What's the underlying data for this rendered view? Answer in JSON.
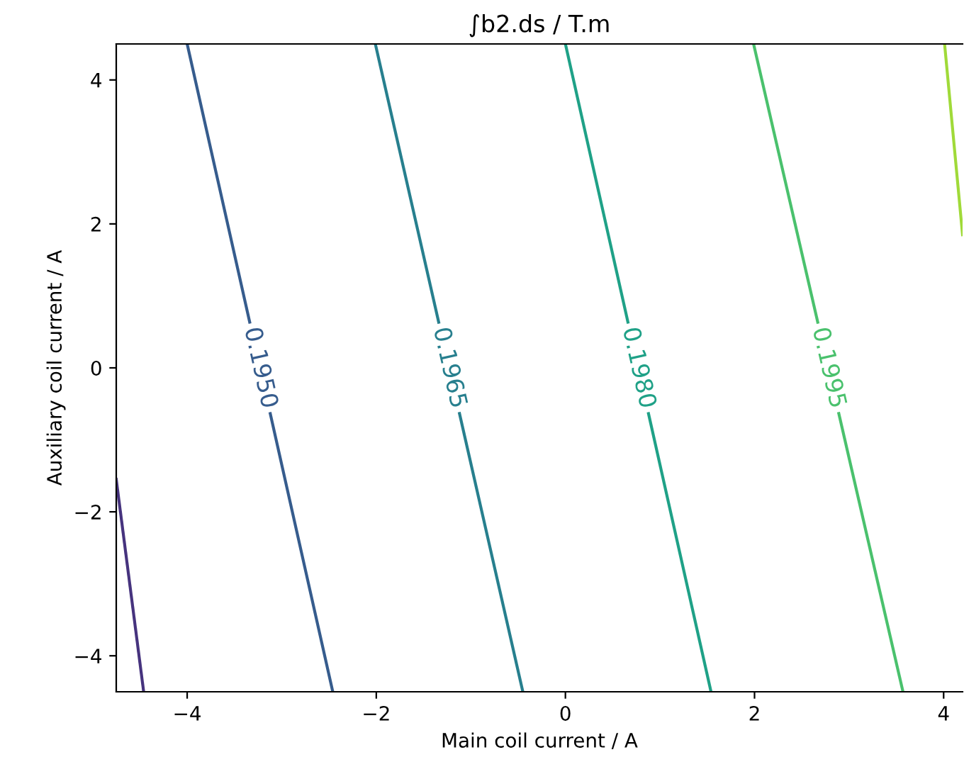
{
  "chart_data": {
    "type": "line",
    "title": "∫b2.ds / T.m",
    "xlabel": "Main coil current / A",
    "ylabel": "Auxiliary coil current / A",
    "series": [
      {
        "color": "#46337e",
        "x": [
          -4.75,
          -4.46
        ],
        "values": [
          -1.55,
          -4.5
        ]
      },
      {
        "name": "0.1950",
        "color": "#365c8d",
        "x": [
          -4.0,
          -2.46
        ],
        "values": [
          4.5,
          -4.5
        ]
      },
      {
        "name": "0.1965",
        "color": "#277f8e",
        "x": [
          -2.01,
          -0.45
        ],
        "values": [
          4.5,
          -4.5
        ]
      },
      {
        "name": "0.1980",
        "color": "#1fa187",
        "x": [
          0.0,
          1.54
        ],
        "values": [
          4.5,
          -4.5
        ]
      },
      {
        "name": "0.1995",
        "color": "#4ac16d",
        "x": [
          1.99,
          3.57
        ],
        "values": [
          4.5,
          -4.5
        ]
      },
      {
        "color": "#a0da39",
        "x": [
          4.01,
          4.2
        ],
        "values": [
          4.5,
          1.85
        ]
      }
    ],
    "xlim": [
      -4.75,
      4.2
    ],
    "ylim": [
      -4.5,
      4.5
    ],
    "xticks": [
      -4,
      -2,
      0,
      2,
      4
    ],
    "yticks": [
      -4,
      -2,
      0,
      2,
      4
    ],
    "grid": false,
    "legend": false
  }
}
